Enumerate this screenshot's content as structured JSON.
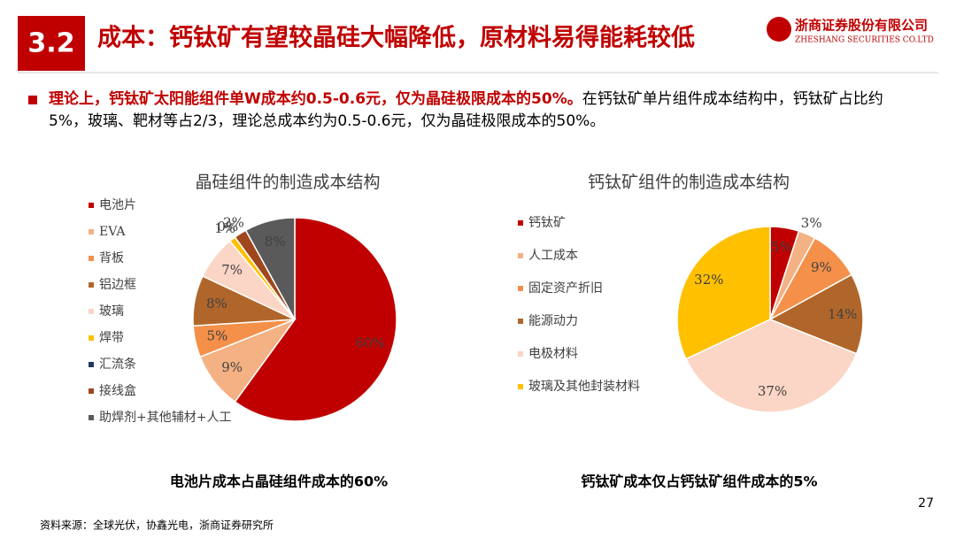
{
  "header": {
    "section": "3.2",
    "title": "成本：钙钛矿有望较晶硅大幅降低，原材料易得能耗较低",
    "company": "浙商证券股份有限公司",
    "company_en": "ZHESHANG SECURITIES CO.LTD"
  },
  "bullet": {
    "highlight": "理论上，钙钛矿太阳能组件单W成本约0.5-0.6元，仅为晶硅极限成本的50%。",
    "text": "在钙钛矿单片组件成本结构中，钙钛矿占比约5%，玻璃、靶材等占2/3，理论总成本约为0.5-0.6元，仅为晶硅极限成本的50%。"
  },
  "chart_data": [
    {
      "type": "pie",
      "title": "晶硅组件的制造成本结构",
      "caption": "电池片成本占晶硅组件成本的60%",
      "categories": [
        "电池片",
        "EVA",
        "背板",
        "铝边框",
        "玻璃",
        "焊带",
        "汇流条",
        "接线盒",
        "助焊剂+其他辅材+人工"
      ],
      "values": [
        60,
        9,
        5,
        8,
        7,
        1,
        0,
        2,
        8
      ],
      "value_labels": [
        "60%",
        "9%",
        "5%",
        "8%",
        "7%",
        "1%",
        "0%",
        "2%",
        "8%"
      ],
      "colors": [
        "#c00000",
        "#f4b183",
        "#f4904a",
        "#b0662a",
        "#fbd5c5",
        "#ffc000",
        "#1f3864",
        "#a0461c",
        "#5a5a5a"
      ]
    },
    {
      "type": "pie",
      "title": "钙钛矿组件的制造成本结构",
      "caption": "钙钛矿成本仅占钙钛矿组件成本的5%",
      "categories": [
        "钙钛矿",
        "人工成本",
        "固定资产折旧",
        "能源动力",
        "电极材料",
        "玻璃及其他封装材料"
      ],
      "values": [
        5,
        3,
        9,
        14,
        37,
        32
      ],
      "value_labels": [
        "5%",
        "3%",
        "9%",
        "14%",
        "37%",
        "32%"
      ],
      "colors": [
        "#c00000",
        "#f4b183",
        "#f4904a",
        "#b0662a",
        "#fbd5c5",
        "#ffc000"
      ]
    }
  ],
  "footer": {
    "source": "资料来源：全球光伏，协鑫光电，浙商证券研究所",
    "page": "27"
  }
}
